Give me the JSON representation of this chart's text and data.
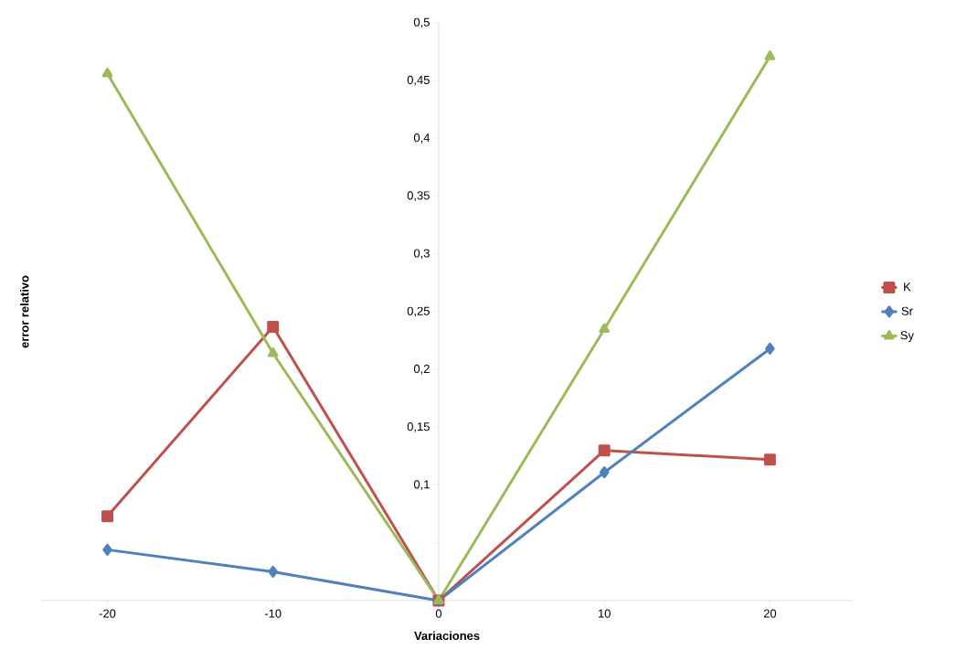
{
  "chart_data": {
    "type": "line",
    "xlabel": "Variaciones",
    "ylabel": "error relativo",
    "x": [
      -20,
      -10,
      0,
      10,
      20
    ],
    "series": [
      {
        "name": "K",
        "color": "#c0504d",
        "marker": "square",
        "values": [
          0.073,
          0.237,
          0,
          0.13,
          0.122
        ]
      },
      {
        "name": "Sr",
        "color": "#4f81bd",
        "marker": "diamond",
        "values": [
          0.044,
          0.025,
          0,
          0.111,
          0.218
        ]
      },
      {
        "name": "Sy",
        "color": "#9bbb59",
        "marker": "triangle",
        "values": [
          0.456,
          0.214,
          0,
          0.235,
          0.471
        ]
      }
    ],
    "xlim": [
      -24,
      25
    ],
    "xticks": [
      -20,
      -10,
      0,
      10,
      20
    ],
    "ylim": [
      0,
      0.5
    ],
    "yticks": [
      {
        "value": 0,
        "label": null
      },
      {
        "value": 0.05,
        "label": null
      },
      {
        "value": 0.1,
        "label": "0,1"
      },
      {
        "value": 0.15,
        "label": "0,15"
      },
      {
        "value": 0.2,
        "label": "0,2"
      },
      {
        "value": 0.25,
        "label": "0,25"
      },
      {
        "value": 0.3,
        "label": "0,3"
      },
      {
        "value": 0.35,
        "label": "0,35"
      },
      {
        "value": 0.4,
        "label": "0,4"
      },
      {
        "value": 0.45,
        "label": "0,45"
      },
      {
        "value": 0.5,
        "label": "0,5"
      }
    ],
    "legend": "right",
    "grid": false,
    "line_style": "solid"
  }
}
